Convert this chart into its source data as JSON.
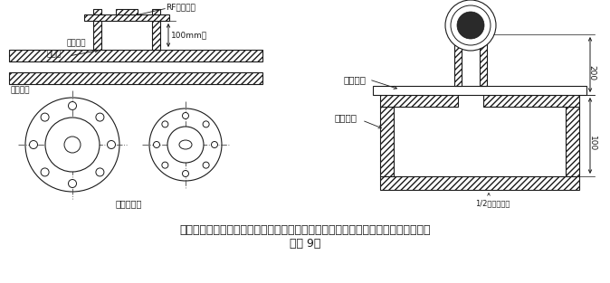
{
  "title_line1": "插入式流量计短管制作、安装示意图，根据流量计算采用不同的法兰及短管公称直径",
  "title_line2": "（图 9）",
  "label_rf": "RF配套法兰",
  "label_100mm": "100mm高",
  "label_weld_point": "焊接点",
  "label_process_pipe": "工艺管道",
  "label_weld_tube": "焊接短管",
  "label_pipe_center": "管道中心线",
  "label_matching_tube": "配套短管",
  "label_pipe_wall": "管道外壁",
  "label_200": "200",
  "label_100": "100",
  "label_half_pipe": "1/2配量管外径",
  "bg_color": "#ffffff",
  "line_color": "#1a1a1a",
  "font_size_small": 7,
  "font_size_mid": 8,
  "font_size_caption": 9
}
